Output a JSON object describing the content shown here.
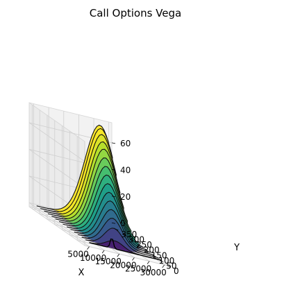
{
  "chart_data": {
    "type": "surface",
    "title": "Call Options Vega",
    "xlabel": "X",
    "ylabel": "Y",
    "zlabel": "",
    "x_ticks": [
      5000,
      10000,
      15000,
      20000,
      25000,
      30000
    ],
    "y_ticks": [
      0,
      50,
      100,
      150,
      200,
      250,
      300,
      350
    ],
    "z_ticks": [
      0,
      20,
      40,
      60
    ],
    "xlim": [
      3500,
      31000
    ],
    "ylim": [
      0,
      370
    ],
    "zlim": [
      -3,
      75
    ],
    "colormap": "viridis",
    "grid": true,
    "x_range_data": [
      5000,
      29000
    ],
    "y_range_data": [
      0,
      350
    ],
    "z_peak": 72,
    "rows": [
      {
        "y": 0,
        "peak": 6
      },
      {
        "y": 25,
        "peak": 14
      },
      {
        "y": 50,
        "peak": 20
      },
      {
        "y": 75,
        "peak": 25
      },
      {
        "y": 100,
        "peak": 30
      },
      {
        "y": 125,
        "peak": 35
      },
      {
        "y": 150,
        "peak": 40
      },
      {
        "y": 175,
        "peak": 45
      },
      {
        "y": 200,
        "peak": 50
      },
      {
        "y": 225,
        "peak": 55
      },
      {
        "y": 250,
        "peak": 60
      },
      {
        "y": 275,
        "peak": 64
      },
      {
        "y": 300,
        "peak": 68
      },
      {
        "y": 325,
        "peak": 71
      },
      {
        "y": 350,
        "peak": 72
      }
    ]
  }
}
